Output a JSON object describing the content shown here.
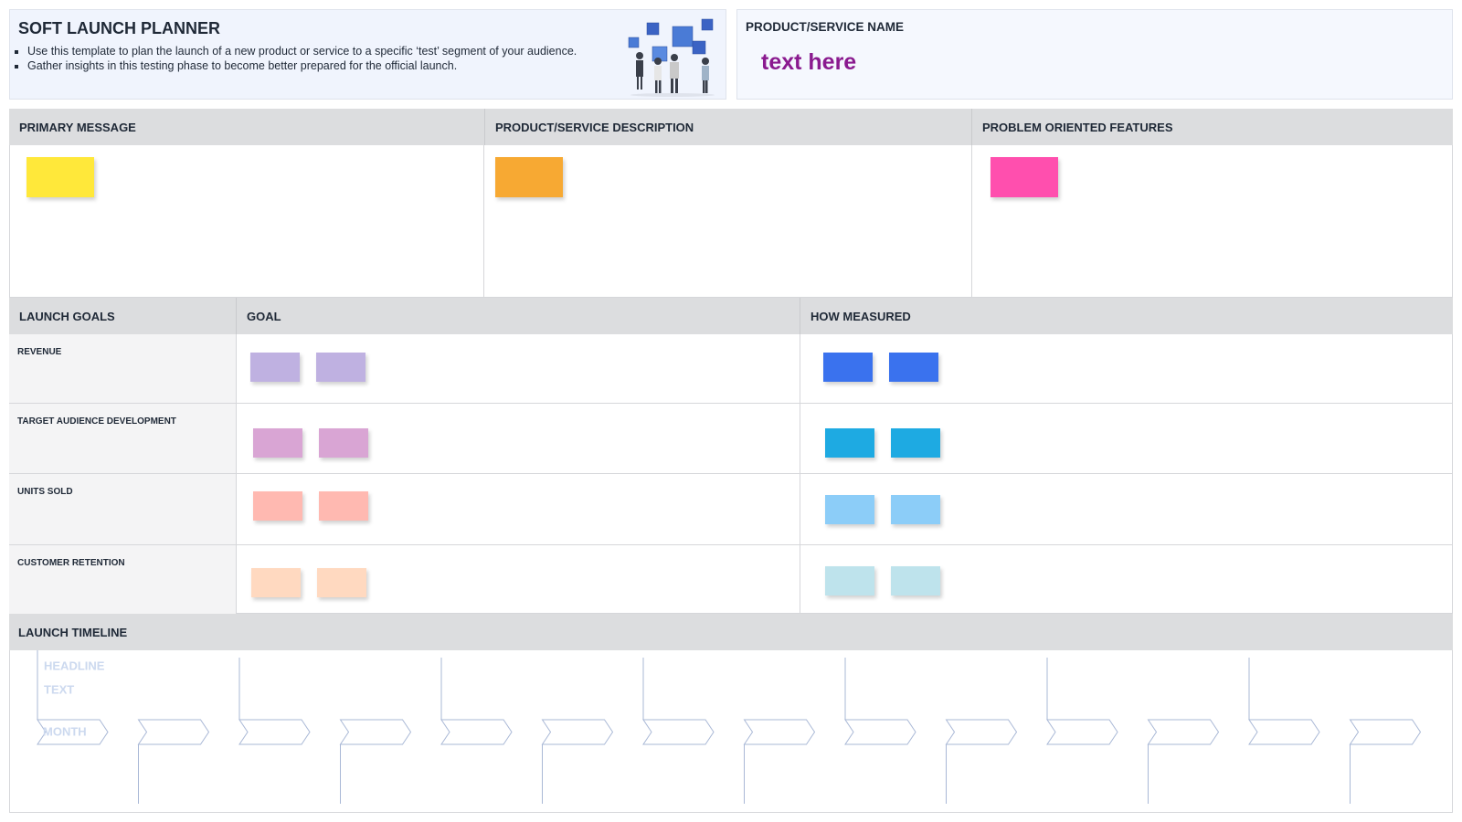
{
  "header": {
    "title": "SOFT LAUNCH PLANNER",
    "bullets": [
      "Use this template to plan the launch of a new product or service to a specific ‘test’ segment of your audience.",
      "Gather insights in this testing phase to become better prepared for the official launch."
    ]
  },
  "product": {
    "label": "PRODUCT/SERVICE NAME",
    "placeholder": "text here"
  },
  "sections": [
    "PRIMARY MESSAGE",
    "PRODUCT/SERVICE DESCRIPTION",
    "PROBLEM ORIENTED FEATURES"
  ],
  "goals": {
    "headers": [
      "LAUNCH GOALS",
      "GOAL",
      "HOW MEASURED"
    ],
    "rows": [
      "REVENUE",
      "TARGET AUDIENCE DEVELOPMENT",
      "UNITS SOLD",
      "CUSTOMER RETENTION"
    ]
  },
  "timeline": {
    "title": "LAUNCH TIMELINE",
    "headline": "HEADLINE",
    "text": "TEXT",
    "month": "MONTH"
  }
}
